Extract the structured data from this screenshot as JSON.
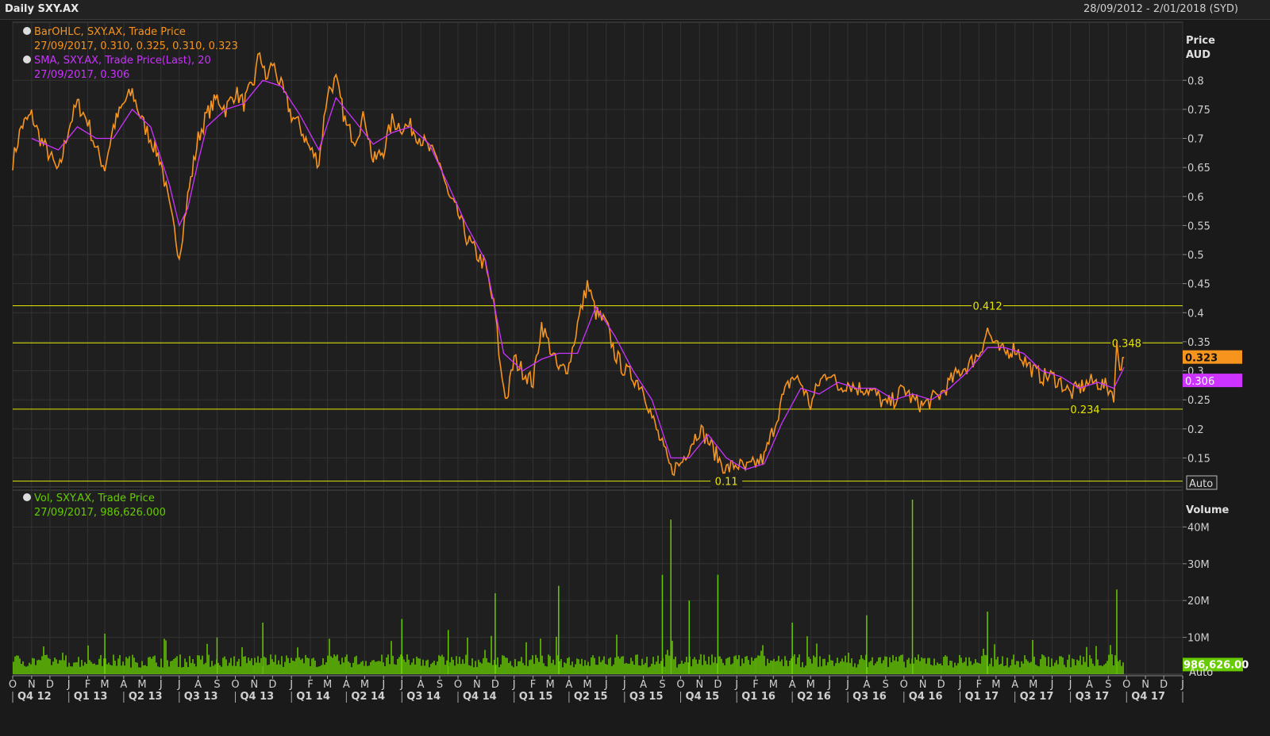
{
  "header": {
    "title": "Daily SXY.AX",
    "date_range": "28/09/2012 - 2/01/2018 (SYD)"
  },
  "colors": {
    "price": "#f7941d",
    "sma": "#cc33ff",
    "volume": "#66cc00",
    "hline": "#e6e600",
    "axis_text": "#cfcfcf",
    "grid": "#333333"
  },
  "chart_data": [
    {
      "type": "line",
      "panel": "price",
      "legend": [
        {
          "name": "BarOHLC, SXY.AX, Trade Price",
          "detail": "27/09/2017, 0.310, 0.325, 0.310, 0.323",
          "color": "#f7941d"
        },
        {
          "name": "SMA, SXY.AX, Trade Price(Last),  20",
          "detail": "27/09/2017, 0.306",
          "color": "#cc33ff"
        }
      ],
      "ylabel": "Price\nAUD",
      "ylabel_lines": [
        "Price",
        "AUD"
      ],
      "ylim": [
        0.1,
        0.9
      ],
      "y_ticks": [
        "0.8",
        "0.75",
        "0.7",
        "0.65",
        "0.6",
        "0.55",
        "0.5",
        "0.45",
        "0.4",
        "0.35",
        "0.3",
        "0.25",
        "0.2",
        "0.15"
      ],
      "x_range": [
        "2012-10-01",
        "2018-01-01"
      ],
      "series": [
        {
          "name": "SXY.AX Trade Price",
          "color": "#f7941d",
          "points": [
            [
              "2012-10-01",
              0.66
            ],
            [
              "2012-10-15",
              0.72
            ],
            [
              "2012-11-01",
              0.74
            ],
            [
              "2012-11-15",
              0.7
            ],
            [
              "2012-12-01",
              0.67
            ],
            [
              "2012-12-15",
              0.64
            ],
            [
              "2013-01-01",
              0.72
            ],
            [
              "2013-01-15",
              0.76
            ],
            [
              "2013-02-01",
              0.73
            ],
            [
              "2013-02-15",
              0.68
            ],
            [
              "2013-03-01",
              0.65
            ],
            [
              "2013-03-15",
              0.72
            ],
            [
              "2013-04-01",
              0.76
            ],
            [
              "2013-04-15",
              0.78
            ],
            [
              "2013-05-01",
              0.73
            ],
            [
              "2013-05-15",
              0.7
            ],
            [
              "2013-06-01",
              0.66
            ],
            [
              "2013-06-15",
              0.58
            ],
            [
              "2013-07-01",
              0.5
            ],
            [
              "2013-07-15",
              0.6
            ],
            [
              "2013-08-01",
              0.7
            ],
            [
              "2013-08-15",
              0.74
            ],
            [
              "2013-09-01",
              0.77
            ],
            [
              "2013-09-15",
              0.75
            ],
            [
              "2013-10-01",
              0.78
            ],
            [
              "2013-10-15",
              0.76
            ],
            [
              "2013-11-01",
              0.8
            ],
            [
              "2013-11-10",
              0.85
            ],
            [
              "2013-11-20",
              0.8
            ],
            [
              "2013-12-01",
              0.83
            ],
            [
              "2013-12-15",
              0.79
            ],
            [
              "2014-01-01",
              0.74
            ],
            [
              "2014-01-15",
              0.72
            ],
            [
              "2014-02-01",
              0.68
            ],
            [
              "2014-02-15",
              0.66
            ],
            [
              "2014-03-01",
              0.78
            ],
            [
              "2014-03-15",
              0.8
            ],
            [
              "2014-04-01",
              0.72
            ],
            [
              "2014-04-15",
              0.7
            ],
            [
              "2014-05-01",
              0.74
            ],
            [
              "2014-05-15",
              0.66
            ],
            [
              "2014-06-01",
              0.68
            ],
            [
              "2014-06-15",
              0.73
            ],
            [
              "2014-07-01",
              0.72
            ],
            [
              "2014-07-15",
              0.72
            ],
            [
              "2014-08-01",
              0.7
            ],
            [
              "2014-08-15",
              0.68
            ],
            [
              "2014-09-01",
              0.66
            ],
            [
              "2014-09-15",
              0.6
            ],
            [
              "2014-10-01",
              0.57
            ],
            [
              "2014-10-15",
              0.53
            ],
            [
              "2014-11-01",
              0.5
            ],
            [
              "2014-11-15",
              0.48
            ],
            [
              "2014-12-01",
              0.4
            ],
            [
              "2014-12-10",
              0.3
            ],
            [
              "2014-12-20",
              0.25
            ],
            [
              "2015-01-01",
              0.32
            ],
            [
              "2015-01-15",
              0.3
            ],
            [
              "2015-02-01",
              0.28
            ],
            [
              "2015-02-15",
              0.38
            ],
            [
              "2015-03-01",
              0.34
            ],
            [
              "2015-03-15",
              0.3
            ],
            [
              "2015-04-01",
              0.31
            ],
            [
              "2015-04-15",
              0.38
            ],
            [
              "2015-05-01",
              0.45
            ],
            [
              "2015-05-15",
              0.4
            ],
            [
              "2015-06-01",
              0.38
            ],
            [
              "2015-06-15",
              0.33
            ],
            [
              "2015-07-01",
              0.3
            ],
            [
              "2015-07-15",
              0.29
            ],
            [
              "2015-08-01",
              0.27
            ],
            [
              "2015-08-15",
              0.22
            ],
            [
              "2015-09-01",
              0.17
            ],
            [
              "2015-09-15",
              0.13
            ],
            [
              "2015-10-01",
              0.14
            ],
            [
              "2015-10-15",
              0.17
            ],
            [
              "2015-11-01",
              0.2
            ],
            [
              "2015-11-15",
              0.18
            ],
            [
              "2015-12-01",
              0.15
            ],
            [
              "2015-12-15",
              0.13
            ],
            [
              "2016-01-01",
              0.14
            ],
            [
              "2016-01-15",
              0.13
            ],
            [
              "2016-02-01",
              0.14
            ],
            [
              "2016-02-15",
              0.15
            ],
            [
              "2016-03-01",
              0.2
            ],
            [
              "2016-03-15",
              0.25
            ],
            [
              "2016-04-01",
              0.29
            ],
            [
              "2016-04-15",
              0.28
            ],
            [
              "2016-05-01",
              0.24
            ],
            [
              "2016-05-15",
              0.28
            ],
            [
              "2016-06-01",
              0.3
            ],
            [
              "2016-06-15",
              0.27
            ],
            [
              "2016-07-01",
              0.28
            ],
            [
              "2016-07-15",
              0.27
            ],
            [
              "2016-08-01",
              0.27
            ],
            [
              "2016-08-15",
              0.26
            ],
            [
              "2016-09-01",
              0.24
            ],
            [
              "2016-09-15",
              0.25
            ],
            [
              "2016-10-01",
              0.27
            ],
            [
              "2016-10-15",
              0.25
            ],
            [
              "2016-11-01",
              0.24
            ],
            [
              "2016-11-15",
              0.25
            ],
            [
              "2016-12-01",
              0.26
            ],
            [
              "2016-12-15",
              0.28
            ],
            [
              "2017-01-01",
              0.3
            ],
            [
              "2017-01-15",
              0.31
            ],
            [
              "2017-02-01",
              0.33
            ],
            [
              "2017-02-15",
              0.37
            ],
            [
              "2017-03-01",
              0.34
            ],
            [
              "2017-03-15",
              0.33
            ],
            [
              "2017-04-01",
              0.34
            ],
            [
              "2017-04-15",
              0.32
            ],
            [
              "2017-05-01",
              0.3
            ],
            [
              "2017-05-15",
              0.29
            ],
            [
              "2017-06-01",
              0.29
            ],
            [
              "2017-06-15",
              0.28
            ],
            [
              "2017-07-01",
              0.26
            ],
            [
              "2017-07-15",
              0.27
            ],
            [
              "2017-08-01",
              0.28
            ],
            [
              "2017-08-15",
              0.28
            ],
            [
              "2017-09-01",
              0.27
            ],
            [
              "2017-09-10",
              0.26
            ],
            [
              "2017-09-15",
              0.34
            ],
            [
              "2017-09-20",
              0.31
            ],
            [
              "2017-09-27",
              0.323
            ]
          ]
        },
        {
          "name": "SMA 20",
          "color": "#cc33ff",
          "points": [
            [
              "2012-11-01",
              0.7
            ],
            [
              "2012-12-15",
              0.68
            ],
            [
              "2013-01-15",
              0.72
            ],
            [
              "2013-02-15",
              0.7
            ],
            [
              "2013-03-15",
              0.7
            ],
            [
              "2013-04-15",
              0.75
            ],
            [
              "2013-05-15",
              0.72
            ],
            [
              "2013-06-15",
              0.62
            ],
            [
              "2013-07-01",
              0.55
            ],
            [
              "2013-07-15",
              0.58
            ],
            [
              "2013-08-01",
              0.66
            ],
            [
              "2013-08-15",
              0.72
            ],
            [
              "2013-09-15",
              0.75
            ],
            [
              "2013-10-15",
              0.76
            ],
            [
              "2013-11-15",
              0.8
            ],
            [
              "2013-12-15",
              0.79
            ],
            [
              "2014-01-15",
              0.74
            ],
            [
              "2014-02-15",
              0.68
            ],
            [
              "2014-03-15",
              0.77
            ],
            [
              "2014-04-15",
              0.73
            ],
            [
              "2014-05-15",
              0.69
            ],
            [
              "2014-06-15",
              0.71
            ],
            [
              "2014-07-15",
              0.72
            ],
            [
              "2014-08-15",
              0.69
            ],
            [
              "2014-09-15",
              0.62
            ],
            [
              "2014-10-15",
              0.55
            ],
            [
              "2014-11-15",
              0.49
            ],
            [
              "2014-12-15",
              0.33
            ],
            [
              "2015-01-15",
              0.3
            ],
            [
              "2015-02-15",
              0.32
            ],
            [
              "2015-03-15",
              0.33
            ],
            [
              "2015-04-15",
              0.33
            ],
            [
              "2015-05-15",
              0.41
            ],
            [
              "2015-06-15",
              0.36
            ],
            [
              "2015-07-15",
              0.3
            ],
            [
              "2015-08-15",
              0.25
            ],
            [
              "2015-09-15",
              0.15
            ],
            [
              "2015-10-15",
              0.15
            ],
            [
              "2015-11-15",
              0.19
            ],
            [
              "2015-12-15",
              0.15
            ],
            [
              "2016-01-15",
              0.13
            ],
            [
              "2016-02-15",
              0.14
            ],
            [
              "2016-03-15",
              0.21
            ],
            [
              "2016-04-15",
              0.27
            ],
            [
              "2016-05-15",
              0.26
            ],
            [
              "2016-06-15",
              0.28
            ],
            [
              "2016-07-15",
              0.27
            ],
            [
              "2016-08-15",
              0.27
            ],
            [
              "2016-09-15",
              0.25
            ],
            [
              "2016-10-15",
              0.26
            ],
            [
              "2016-11-15",
              0.25
            ],
            [
              "2016-12-15",
              0.27
            ],
            [
              "2017-01-15",
              0.3
            ],
            [
              "2017-02-15",
              0.34
            ],
            [
              "2017-03-15",
              0.34
            ],
            [
              "2017-04-15",
              0.33
            ],
            [
              "2017-05-15",
              0.3
            ],
            [
              "2017-06-15",
              0.29
            ],
            [
              "2017-07-15",
              0.27
            ],
            [
              "2017-08-15",
              0.28
            ],
            [
              "2017-09-10",
              0.27
            ],
            [
              "2017-09-27",
              0.306
            ]
          ]
        }
      ],
      "hlines": [
        {
          "value": 0.412,
          "label": "0.412",
          "label_x": "2017-02-15"
        },
        {
          "value": 0.348,
          "label": "0.348",
          "label_x": "2017-10-01"
        },
        {
          "value": 0.234,
          "label": "0.234",
          "label_x": "2017-07-25"
        },
        {
          "value": 0.11,
          "label": "0.11",
          "label_x": "2015-12-15"
        }
      ],
      "last_price_label": "0.323",
      "last_sma_label": "0.306",
      "auto_label": "Auto"
    },
    {
      "type": "bar",
      "panel": "volume",
      "legend": [
        {
          "name": "Vol, SXY.AX, Trade Price",
          "detail": "27/09/2017, 986,626.000",
          "color": "#66cc00"
        }
      ],
      "ylabel": "Volume",
      "ylim": [
        0,
        50000000
      ],
      "y_ticks": [
        "40M",
        "30M",
        "20M",
        "10M"
      ],
      "baseline_value": 3000000,
      "spikes": [
        [
          "2013-03-01",
          11000000
        ],
        [
          "2013-09-01",
          10000000
        ],
        [
          "2013-11-15",
          14000000
        ],
        [
          "2014-07-01",
          15000000
        ],
        [
          "2014-09-15",
          12000000
        ],
        [
          "2014-12-01",
          22000000
        ],
        [
          "2015-03-15",
          24000000
        ],
        [
          "2015-09-01",
          27000000
        ],
        [
          "2015-09-15",
          42000000
        ],
        [
          "2015-10-15",
          20000000
        ],
        [
          "2015-12-01",
          27000000
        ],
        [
          "2016-04-01",
          14000000
        ],
        [
          "2016-08-01",
          16000000
        ],
        [
          "2016-10-15",
          56000000
        ],
        [
          "2017-02-15",
          17000000
        ],
        [
          "2017-09-15",
          23000000
        ]
      ],
      "last_volume_label": "986,626.00",
      "auto_label": "Auto"
    }
  ],
  "x_axis": {
    "months": [
      "O",
      "N",
      "D",
      "J",
      "F",
      "M",
      "A",
      "M",
      "J",
      "J",
      "A",
      "S",
      "O",
      "N",
      "D",
      "J",
      "F",
      "M",
      "A",
      "M",
      "J",
      "J",
      "A",
      "S",
      "O",
      "N",
      "D",
      "J",
      "F",
      "M",
      "A",
      "M",
      "J",
      "J",
      "A",
      "S",
      "O",
      "N",
      "D",
      "J",
      "F",
      "M",
      "A",
      "M",
      "J",
      "J",
      "A",
      "S",
      "O",
      "N",
      "D",
      "J",
      "F",
      "M",
      "A",
      "M",
      "J",
      "J",
      "A",
      "S",
      "O",
      "N",
      "D",
      "J"
    ],
    "quarters": [
      "Q4 12",
      "Q1 13",
      "Q2 13",
      "Q3 13",
      "Q4 13",
      "Q1 14",
      "Q2 14",
      "Q3 14",
      "Q4 14",
      "Q1 15",
      "Q2 15",
      "Q3 15",
      "Q4 15",
      "Q1 16",
      "Q2 16",
      "Q3 16",
      "Q4 16",
      "Q1 17",
      "Q2 17",
      "Q3 17",
      "Q4 17"
    ]
  }
}
